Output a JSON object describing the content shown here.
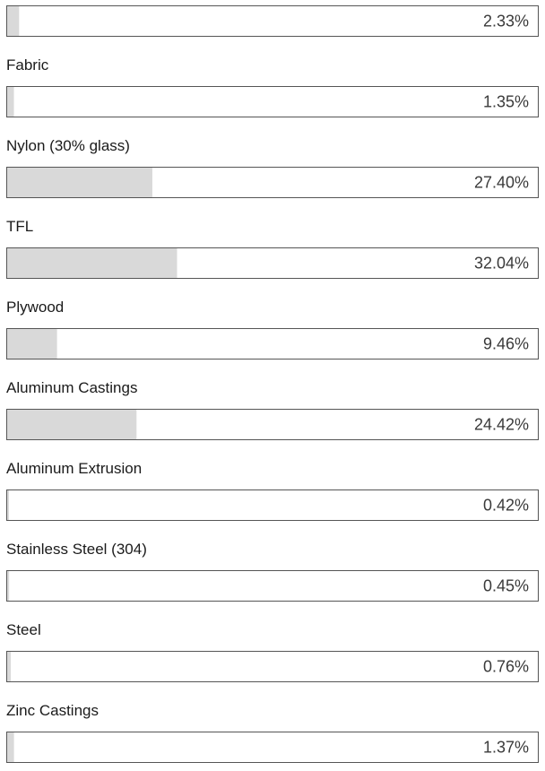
{
  "chart_data": {
    "type": "bar",
    "orientation": "horizontal",
    "categories": [
      null,
      "Fabric",
      "Nylon (30% glass)",
      "TFL",
      "Plywood",
      "Aluminum Castings",
      "Aluminum Extrusion",
      "Stainless Steel (304)",
      "Steel",
      "Zinc Castings"
    ],
    "values": [
      2.33,
      1.35,
      27.4,
      32.04,
      9.46,
      24.42,
      0.42,
      0.45,
      0.76,
      1.37
    ],
    "value_labels": [
      "2.33%",
      "1.35%",
      "27.40%",
      "32.04%",
      "9.46%",
      "24.42%",
      "0.42%",
      "0.45%",
      "0.76%",
      "1.37%"
    ],
    "color": "#d9d9d9",
    "xlim": [
      0,
      100
    ]
  }
}
